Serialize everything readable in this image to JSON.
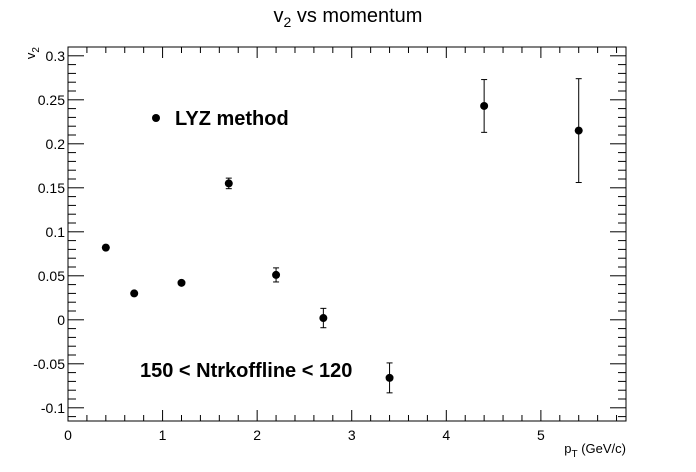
{
  "chart_data": {
    "type": "scatter",
    "title_main": "v",
    "title_sub": "2",
    "title_rest": " vs momentum",
    "xlabel_main": "p",
    "xlabel_sub": "T",
    "xlabel_rest": " (GeV/c)",
    "ylabel_main": "v",
    "ylabel_sub": "2",
    "xlim": [
      0,
      5.9
    ],
    "ylim": [
      -0.115,
      0.31
    ],
    "x_ticks": [
      0,
      1,
      2,
      3,
      4,
      5
    ],
    "y_ticks": [
      -0.1,
      -0.05,
      0,
      0.05,
      0.1,
      0.15,
      0.2,
      0.25,
      0.3
    ],
    "x_tick_labels": [
      "0",
      "1",
      "2",
      "3",
      "4",
      "5"
    ],
    "y_tick_labels": [
      "-0.1",
      "-0.05",
      "0",
      "0.05",
      "0.1",
      "0.15",
      "0.2",
      "0.25",
      "0.3"
    ],
    "series": [
      {
        "name": "LYZ method",
        "x": [
          0.4,
          0.7,
          1.2,
          1.7,
          2.2,
          2.7,
          3.4,
          4.4,
          5.4
        ],
        "y": [
          0.082,
          0.03,
          0.042,
          0.155,
          0.051,
          0.002,
          -0.066,
          0.243,
          0.215
        ],
        "yerr": [
          0.002,
          0.002,
          0.002,
          0.006,
          0.008,
          0.011,
          0.017,
          0.03,
          0.059
        ]
      }
    ],
    "legend_label": "LYZ method",
    "annotation": "150 < Ntrkoffline < 120",
    "grid": false
  },
  "colors": {
    "marker": "#000000",
    "axis": "#000000",
    "background": "#ffffff"
  }
}
